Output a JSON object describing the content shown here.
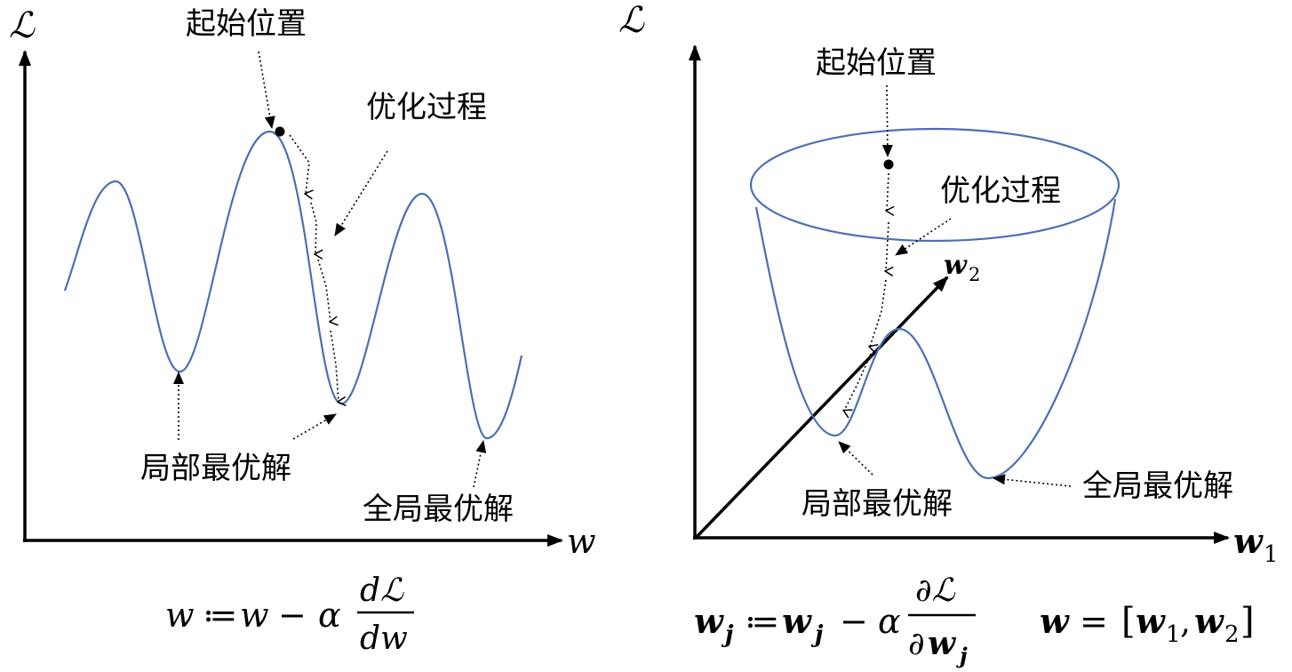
{
  "left_panel": {
    "y_axis_label": "ℒ",
    "x_axis_label": "w",
    "label_start": "起始位置",
    "label_process": "优化过程",
    "label_local_opt": "局部最优解",
    "label_global_opt": "全局最优解",
    "formula": {
      "lhs": "w",
      "assign": "≔",
      "w": "w",
      "minus": "−",
      "alpha": "α",
      "numerator": "dℒ",
      "denominator": "dw"
    }
  },
  "right_panel": {
    "y_axis_label": "ℒ",
    "x_axis_label_w": "w",
    "x_axis_label_sub": "1",
    "axis2_label_w": "w",
    "axis2_label_sub": "2",
    "label_start": "起始位置",
    "label_process": "优化过程",
    "label_local_opt": "局部最优解",
    "label_global_opt": "全局最优解",
    "formula": {
      "lhs_w": "w",
      "lhs_sub": "j",
      "assign": "≔",
      "w": "w",
      "w_sub": "j",
      "minus": "−",
      "alpha": "α",
      "numerator": "∂ℒ",
      "denominator_partial": "∂",
      "denominator_w": "w",
      "denominator_sub": "j"
    },
    "vector_def": {
      "w": "w",
      "equals": "=",
      "open": "[",
      "w1": "w",
      "sub1": "1",
      "comma": ",",
      "w2": "w",
      "sub2": "2",
      "close": "]"
    }
  },
  "colors": {
    "curve": "#4a6fb5",
    "axis": "#000000"
  }
}
